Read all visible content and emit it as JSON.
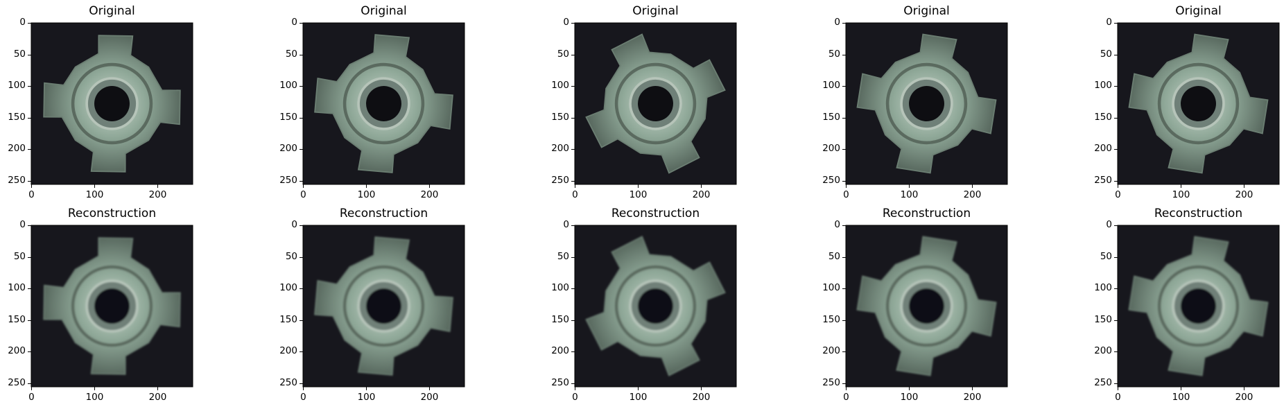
{
  "figure": {
    "rows": [
      {
        "name": "original",
        "panel_title": "Original"
      },
      {
        "name": "reconstruction",
        "panel_title": "Reconstruction"
      }
    ],
    "columns": 5,
    "image": {
      "subject": "metal nut with four tabs and central hole, viewed from above",
      "background_color": "#17171d",
      "metal_color": "#8fa898",
      "hole_color": "#0e0e12"
    },
    "axes": {
      "x_ticks": [
        "0",
        "100",
        "200"
      ],
      "y_ticks": [
        "0",
        "50",
        "100",
        "150",
        "200",
        "250"
      ],
      "x_tick_values": [
        0,
        100,
        200
      ],
      "y_tick_values": [
        0,
        50,
        100,
        150,
        200,
        250
      ],
      "xlim": [
        -0.5,
        255.5
      ],
      "ylim": [
        255.5,
        -0.5
      ]
    },
    "samples": [
      {
        "rotation_deg": 0
      },
      {
        "rotation_deg": 4
      },
      {
        "rotation_deg": -28
      },
      {
        "rotation_deg": 8
      },
      {
        "rotation_deg": 8
      }
    ]
  }
}
